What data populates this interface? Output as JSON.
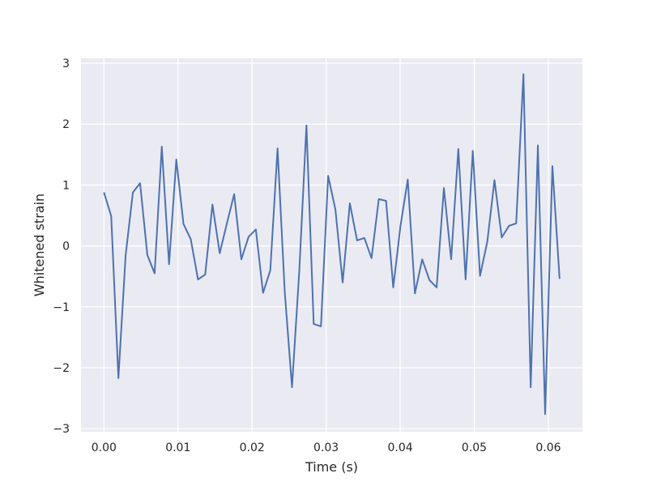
{
  "chart_data": {
    "type": "line",
    "title": "",
    "xlabel": "Time (s)",
    "ylabel": "Whitened strain",
    "xlim": [
      -0.0031,
      0.0646
    ],
    "ylim": [
      -3.05,
      3.08
    ],
    "xticks": [
      0.0,
      0.01,
      0.02,
      0.03,
      0.04,
      0.05,
      0.06
    ],
    "xtick_labels": [
      "0.00",
      "0.01",
      "0.02",
      "0.03",
      "0.04",
      "0.05",
      "0.06"
    ],
    "yticks": [
      -3,
      -2,
      -1,
      0,
      1,
      2,
      3
    ],
    "ytick_labels": [
      "−3",
      "−2",
      "−1",
      "0",
      "1",
      "2",
      "3"
    ],
    "grid": true,
    "style": "seaborn-darkgrid",
    "colors": {
      "background": "#eaeaf2",
      "grid": "#ffffff",
      "line": "#4c72b0",
      "text": "#262626"
    },
    "series": [
      {
        "x": [
          0.0,
          0.00098,
          0.00195,
          0.00293,
          0.00391,
          0.00488,
          0.00586,
          0.00684,
          0.00781,
          0.00879,
          0.00977,
          0.01074,
          0.01172,
          0.0127,
          0.01367,
          0.01465,
          0.01563,
          0.0166,
          0.01758,
          0.01855,
          0.01953,
          0.02051,
          0.02148,
          0.02246,
          0.02344,
          0.02441,
          0.02539,
          0.02637,
          0.02734,
          0.02832,
          0.0293,
          0.03027,
          0.03125,
          0.03223,
          0.0332,
          0.03418,
          0.03516,
          0.03613,
          0.03711,
          0.03809,
          0.03906,
          0.04004,
          0.04102,
          0.04199,
          0.04297,
          0.04395,
          0.04492,
          0.0459,
          0.04688,
          0.04785,
          0.04883,
          0.0498,
          0.05078,
          0.05176,
          0.05273,
          0.05371,
          0.05469,
          0.05566,
          0.05664,
          0.05762,
          0.05859,
          0.05957,
          0.06055,
          0.06152
        ],
        "y": [
          0.88,
          0.49,
          -2.17,
          -0.15,
          0.88,
          1.03,
          -0.15,
          -0.45,
          1.63,
          -0.3,
          1.42,
          0.36,
          0.11,
          -0.55,
          -0.47,
          0.68,
          -0.12,
          0.37,
          0.85,
          -0.22,
          0.15,
          0.27,
          -0.77,
          -0.4,
          1.6,
          -0.75,
          -2.32,
          -0.42,
          1.98,
          -1.28,
          -1.32,
          1.15,
          0.6,
          -0.6,
          0.7,
          0.09,
          0.13,
          -0.2,
          0.77,
          0.74,
          -0.68,
          0.33,
          1.09,
          -0.78,
          -0.22,
          -0.56,
          -0.68,
          0.95,
          -0.22,
          1.59,
          -0.55,
          1.56,
          -0.49,
          0.07,
          1.08,
          0.14,
          0.33,
          0.37,
          2.82,
          -2.32,
          1.65,
          -2.76,
          1.31,
          -0.54
        ]
      }
    ]
  }
}
